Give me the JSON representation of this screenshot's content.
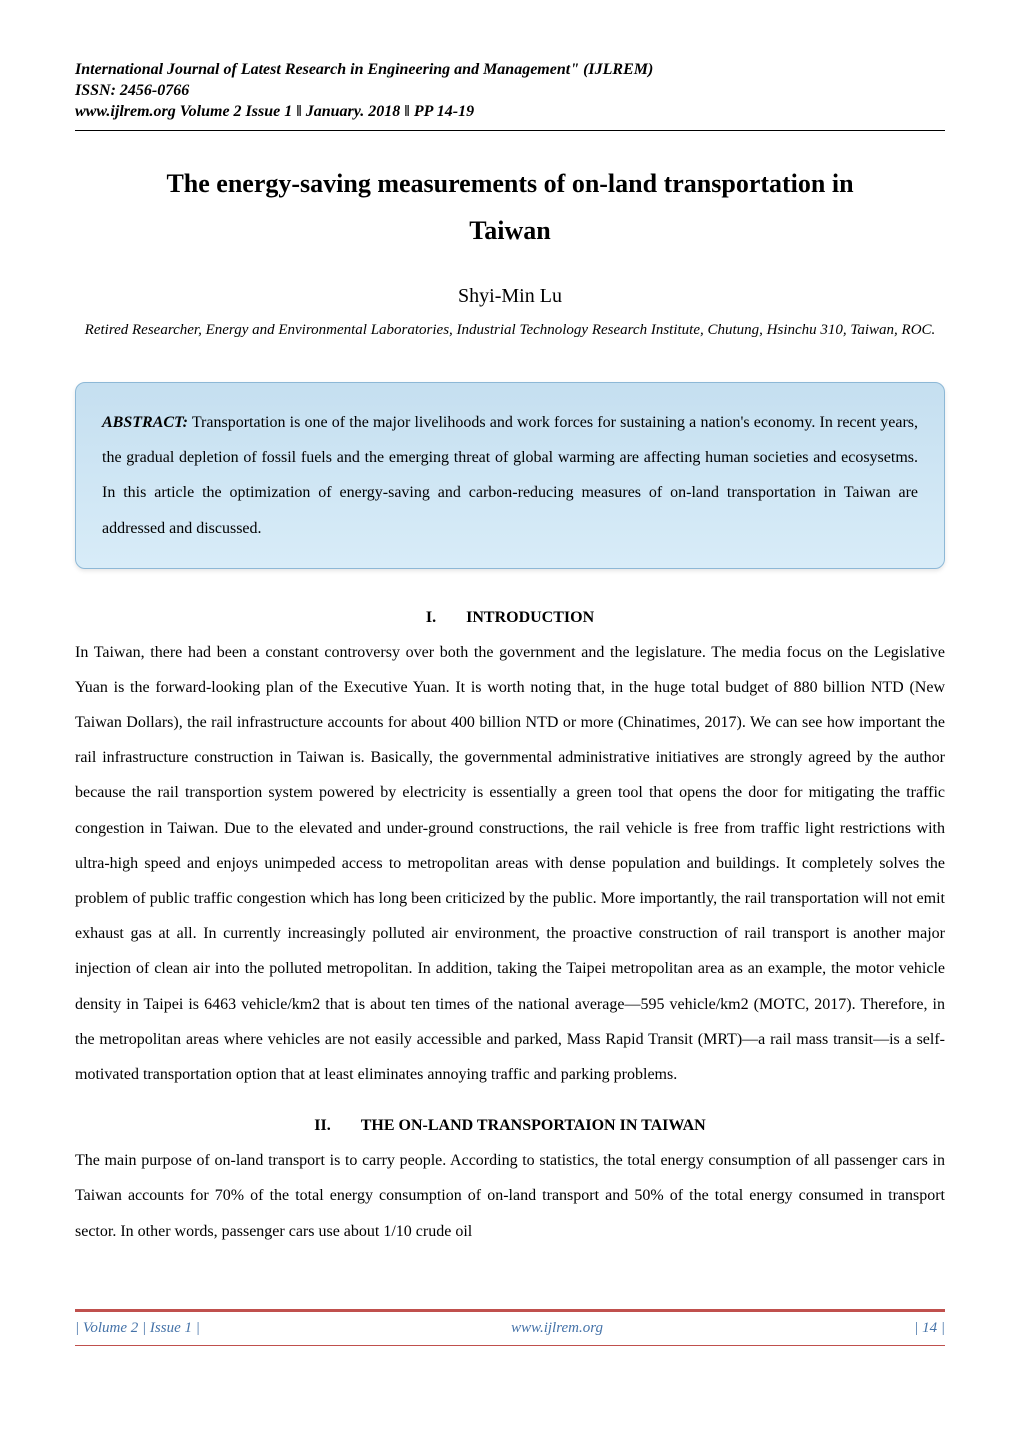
{
  "header": {
    "journal_name": "International Journal of Latest Research in Engineering and Management\" (IJLREM)",
    "issn": "ISSN: 2456-0766",
    "volume_info": "www.ijlrem.org Volume 2 Issue 1 ǁ January. 2018 ǁ PP 14-19"
  },
  "title": {
    "line1": "The energy-saving measurements of on-land transportation in",
    "line2": "Taiwan"
  },
  "author": "Shyi-Min Lu",
  "affiliation": "Retired Researcher, Energy and Environmental Laboratories, Industrial Technology Research Institute, Chutung, Hsinchu 310, Taiwan, ROC.",
  "abstract": {
    "label": "ABSTRACT:",
    "text": "Transportation is one of the major livelihoods and work forces for sustaining a nation's economy. In recent years, the gradual depletion of fossil fuels and the emerging threat of global warming are affecting human societies and ecosysetms. In this article the optimization of energy-saving and carbon-reducing measures of on-land transportation in Taiwan are addressed and discussed."
  },
  "sections": {
    "intro": {
      "number": "I.",
      "heading": "INTRODUCTION",
      "body": "In Taiwan, there had been a constant controversy over both the government and the legislature. The media focus on the Legislative Yuan is the forward-looking plan of the Executive Yuan. It is worth noting that, in the huge total budget of 880 billion NTD (New Taiwan Dollars), the rail infrastructure accounts for about 400 billion NTD or more (Chinatimes, 2017). We can see how important the rail infrastructure construction in Taiwan is. Basically, the governmental administrative initiatives are strongly agreed by the author because the rail transportion system powered by electricity is essentially a green tool that opens the door for mitigating the traffic congestion in Taiwan. Due to the elevated and under-ground constructions, the rail vehicle is free from traffic light restrictions with ultra-high speed and enjoys unimpeded access to metropolitan areas with dense population and buildings. It completely solves the problem of public traffic congestion which has long been criticized by the public. More importantly, the rail transportation will not emit exhaust gas at all. In currently increasingly polluted air environment, the proactive construction of rail transport is another major injection of clean air into the polluted metropolitan. In addition, taking the Taipei metropolitan area as an example, the motor vehicle density in Taipei is 6463 vehicle/km2 that is about ten times of the national average—595 vehicle/km2 (MOTC, 2017). Therefore, in the metropolitan areas where vehicles are not easily accessible and parked, Mass Rapid Transit (MRT)—a rail mass transit—is a self-motivated transportation option that at least eliminates annoying traffic and parking problems."
    },
    "onland": {
      "number": "II.",
      "heading": "THE ON-LAND TRANSPORTAION IN TAIWAN",
      "body": "The main purpose of on-land transport is to carry people. According to statistics, the total energy consumption of all passenger cars in Taiwan accounts for 70% of the total energy consumption of on-land transport and 50% of the total energy consumed in transport sector. In other words, passenger cars use about 1/10 crude oil"
    }
  },
  "footer": {
    "left": "| Volume 2 | Issue 1 |",
    "center": "www.ijlrem.org",
    "right": "| 14 |"
  },
  "colors": {
    "text": "#000000",
    "abstract_bg_top": "#c5dff0",
    "abstract_bg_bottom": "#d8ecf8",
    "abstract_border": "#8db8d6",
    "footer_rule": "#c0504d",
    "footer_text": "#4472a8"
  }
}
